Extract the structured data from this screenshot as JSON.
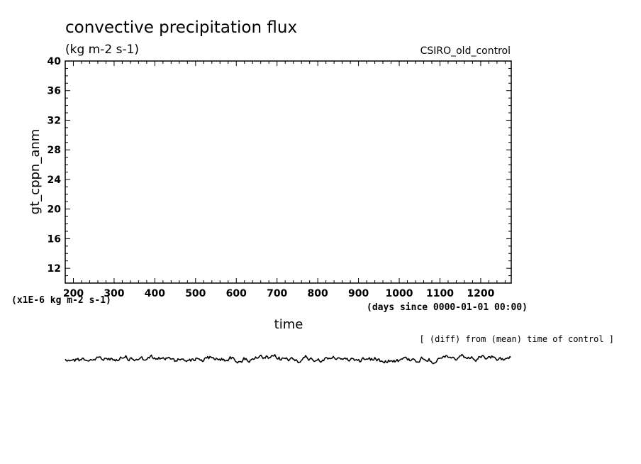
{
  "chart_data": {
    "type": "line",
    "title": "convective precipitation flux",
    "units": "(kg m-2 s-1)",
    "run_label": "CSIRO_old_control",
    "ylabel": "gt_cppn_anm",
    "ylim": [
      10,
      40
    ],
    "yticks": [
      "40",
      "36",
      "32",
      "28",
      "24",
      "20",
      "16",
      "12"
    ],
    "scale_note": "(x1E-6 kg m-2 s-1)",
    "xlabel": "time",
    "xunits": "(days since 0000-01-01 00:00)",
    "xlim": [
      180,
      1275
    ],
    "xticks": [
      "200",
      "300",
      "400",
      "500",
      "600",
      "700",
      "800",
      "900",
      "1000",
      "1100",
      "1200"
    ],
    "diff_note": "[ (diff) from (mean) time of control ]",
    "line_color": "#000000"
  }
}
